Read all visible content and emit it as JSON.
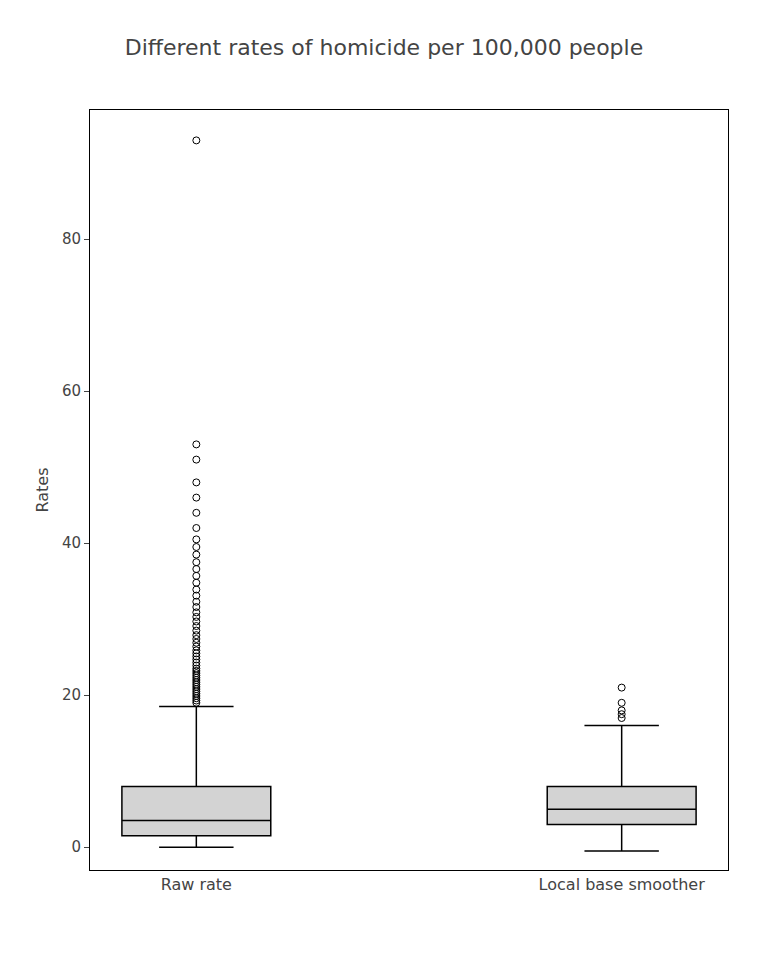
{
  "chart_data": {
    "type": "box",
    "title": "Different rates of homicide per 100,000 people",
    "ylabel": "Rates",
    "categories": [
      "Raw rate",
      "Local base smoother"
    ],
    "stats": [
      {
        "q1": 1.5,
        "median": 3.5,
        "q3": 8.0,
        "whisker_low": 0.0,
        "whisker_high": 18.5,
        "outliers": [
          19.0,
          19.3,
          19.6,
          19.9,
          20.2,
          20.5,
          20.8,
          21.1,
          21.4,
          21.7,
          22.0,
          22.3,
          22.6,
          22.9,
          23.2,
          23.5,
          23.9,
          24.3,
          24.7,
          25.1,
          25.5,
          25.9,
          26.4,
          26.9,
          27.4,
          27.9,
          28.5,
          29.1,
          29.7,
          30.3,
          30.9,
          31.6,
          32.3,
          33.1,
          33.9,
          34.8,
          35.7,
          36.6,
          37.5,
          38.5,
          39.5,
          40.5,
          42.0,
          44.0,
          46.0,
          48.0,
          51.0,
          53.0,
          93.0
        ]
      },
      {
        "q1": 3.0,
        "median": 5.0,
        "q3": 8.0,
        "whisker_low": -0.5,
        "whisker_high": 16.0,
        "outliers": [
          17.0,
          17.5,
          18.0,
          19.0,
          21.0
        ]
      }
    ],
    "color": "#d3d3d3",
    "ylim": [
      -3,
      97
    ],
    "yticks": [
      0,
      20,
      40,
      60,
      80
    ],
    "grid": false
  }
}
